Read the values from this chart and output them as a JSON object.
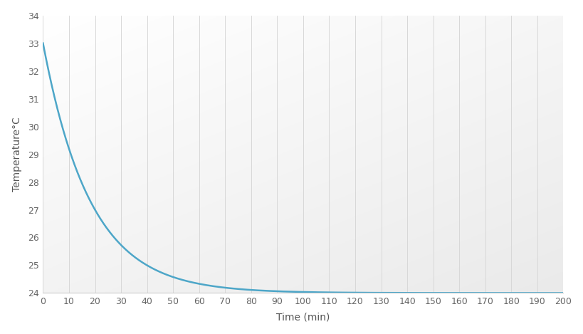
{
  "title": "",
  "xlabel": "Time (min)",
  "ylabel": "Temperature°C",
  "xlim": [
    0,
    200
  ],
  "ylim": [
    24,
    34
  ],
  "xticks": [
    0,
    10,
    20,
    30,
    40,
    50,
    60,
    70,
    80,
    90,
    100,
    110,
    120,
    130,
    140,
    150,
    160,
    170,
    180,
    190,
    200
  ],
  "yticks": [
    24,
    25,
    26,
    27,
    28,
    29,
    30,
    31,
    32,
    33,
    34
  ],
  "line_color": "#4da6c8",
  "line_width": 1.8,
  "T_start": 33.0,
  "T_room": 24.0,
  "decay_rate": 0.055,
  "time_max": 200,
  "num_points": 2001,
  "grid_color": "#d8d8d8",
  "grid_linewidth": 0.7,
  "bg_top": "#ffffff",
  "bg_bottom": "#e8eaee"
}
